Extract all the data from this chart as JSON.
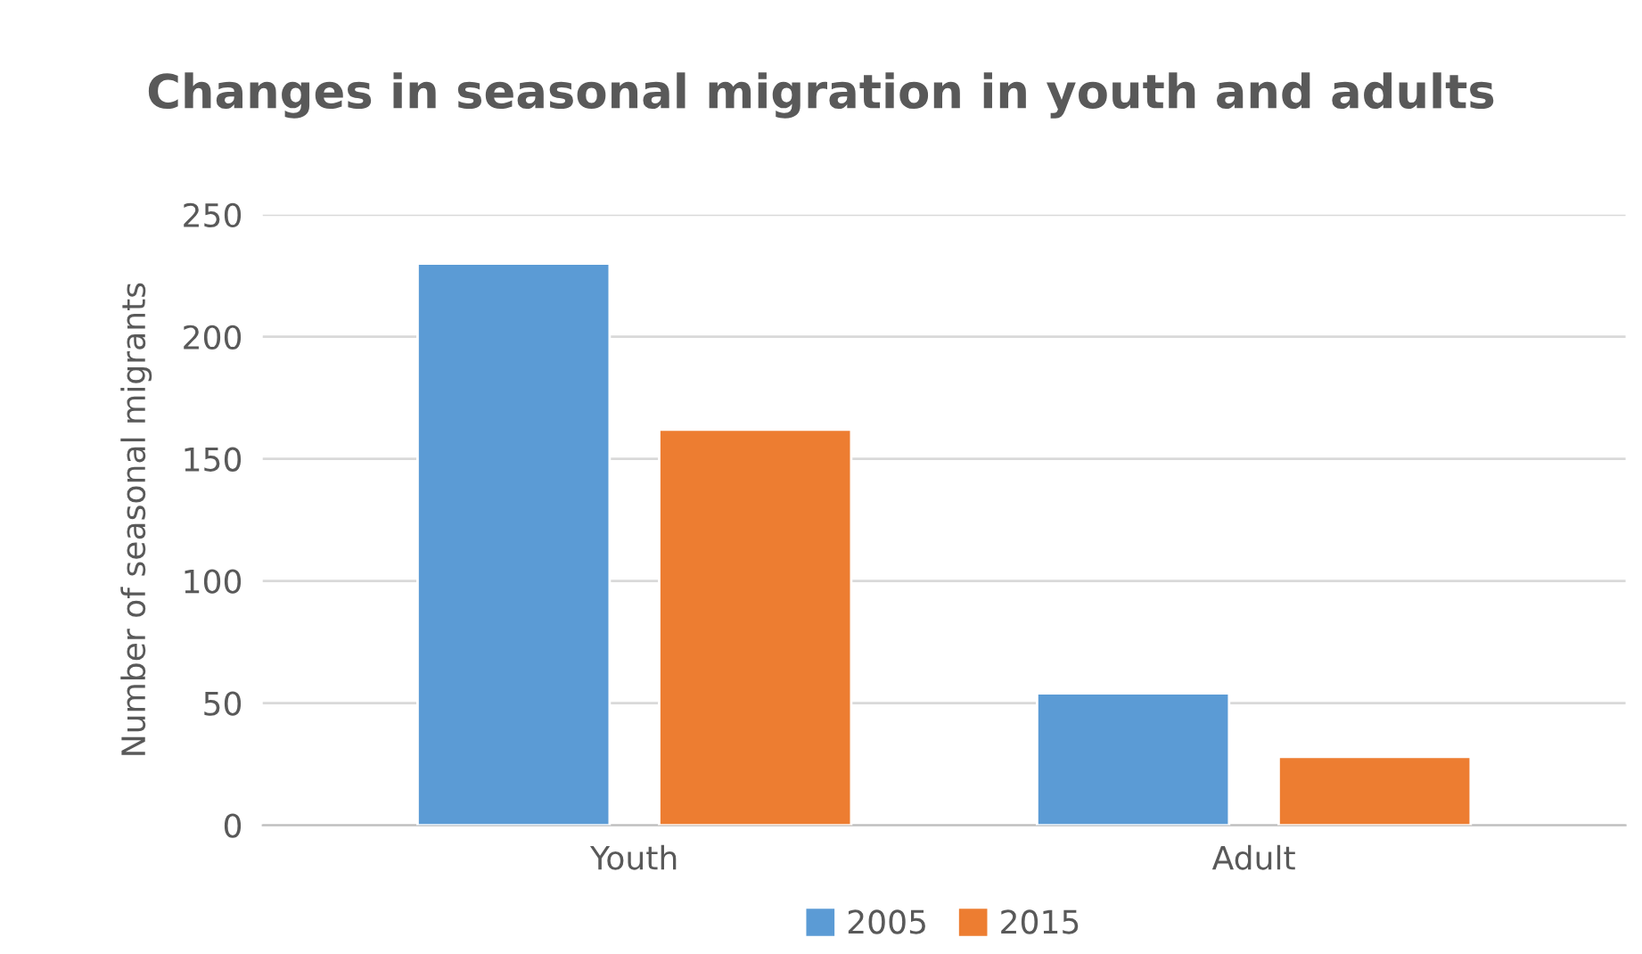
{
  "chart_data": {
    "type": "bar",
    "title": "Changes in seasonal migration in youth and adults",
    "ylabel": "Number of seasonal migrants",
    "categories": [
      "Youth",
      "Adult"
    ],
    "series": [
      {
        "name": "2005",
        "color": "#5b9bd5",
        "values": [
          230,
          54
        ]
      },
      {
        "name": "2015",
        "color": "#ed7d31",
        "values": [
          162,
          28
        ]
      }
    ],
    "ylim": [
      0,
      250
    ],
    "yticks": [
      0,
      50,
      100,
      150,
      200,
      250
    ],
    "grid": "y",
    "legend": "bottom"
  }
}
